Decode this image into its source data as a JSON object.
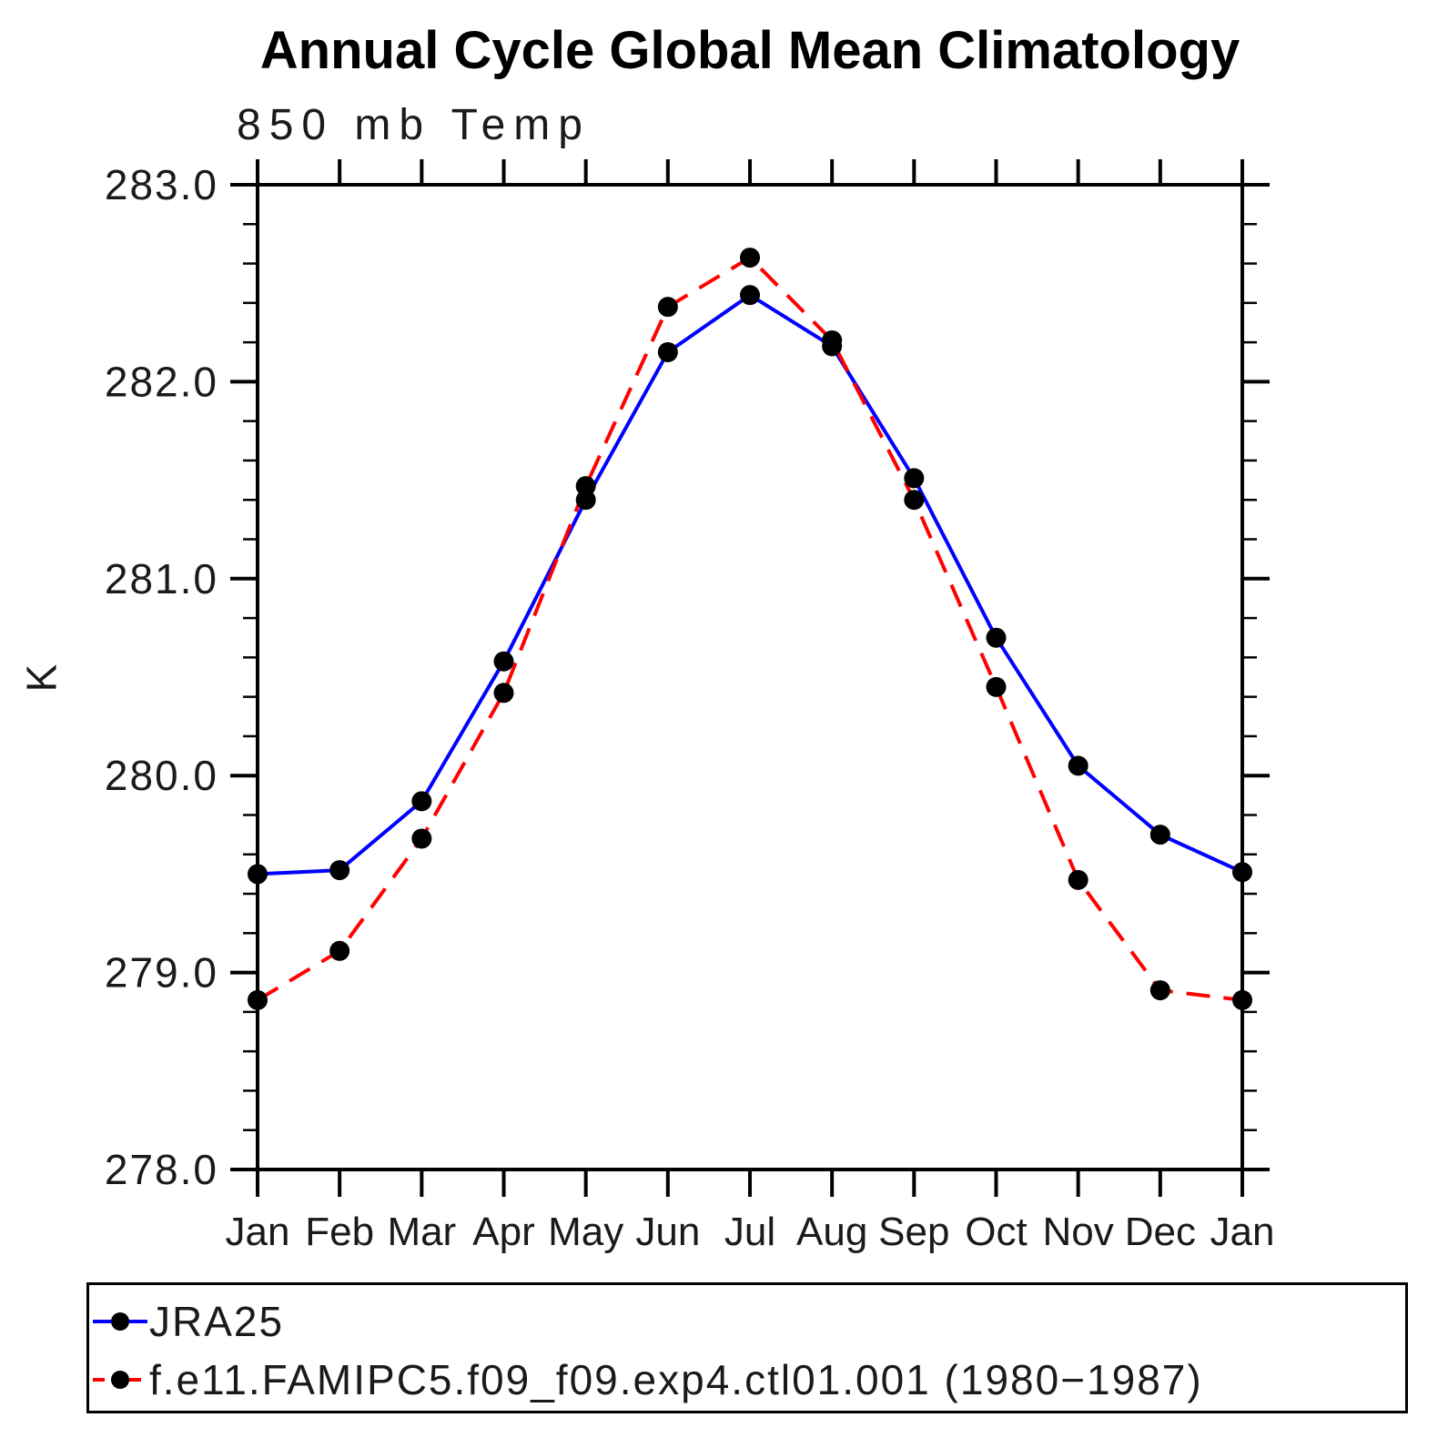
{
  "chart_data": {
    "type": "line",
    "title": "Annual Cycle Global Mean Climatology",
    "subtitle": "850 mb Temp",
    "ylabel": "K",
    "xlabel": "",
    "categories": [
      "Jan",
      "Feb",
      "Mar",
      "Apr",
      "May",
      "Jun",
      "Jul",
      "Aug",
      "Sep",
      "Oct",
      "Nov",
      "Dec",
      "Jan"
    ],
    "ylim": [
      278.0,
      283.0
    ],
    "y_major_step": 1.0,
    "y_minor_step": 0.2,
    "y_tick_labels": [
      "278.0",
      "279.0",
      "280.0",
      "281.0",
      "282.0",
      "283.0"
    ],
    "grid": false,
    "legend_position": "bottom-box",
    "marker": "filled-circle",
    "marker_color": "#000000",
    "series": [
      {
        "name": "JRA25",
        "color": "#0000ff",
        "style": "solid",
        "values": [
          279.5,
          279.52,
          279.87,
          280.58,
          281.4,
          282.15,
          282.44,
          282.18,
          281.51,
          280.7,
          280.05,
          279.7,
          279.51
        ]
      },
      {
        "name": "f.e11.FAMIPC5.f09_f09.exp4.ctl01.001 (1980−1987)",
        "color": "#ff0000",
        "style": "dashed",
        "values": [
          278.86,
          279.11,
          279.68,
          280.42,
          281.47,
          282.38,
          282.63,
          282.21,
          281.4,
          280.45,
          279.47,
          278.91,
          278.86
        ]
      }
    ]
  }
}
